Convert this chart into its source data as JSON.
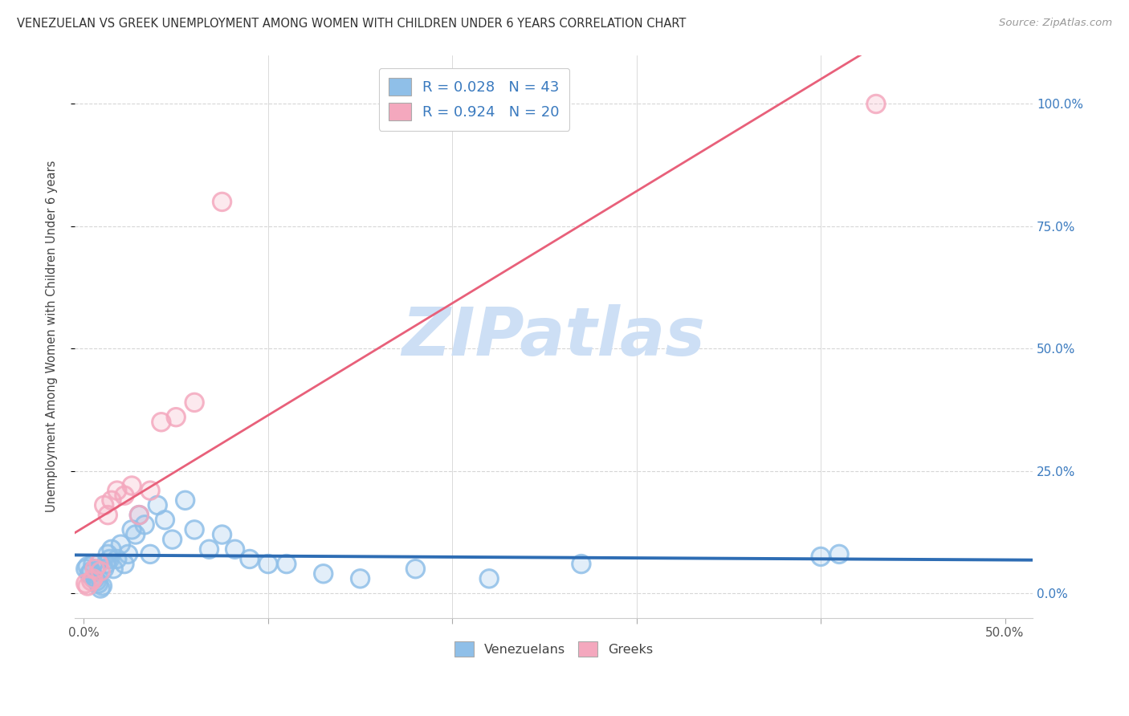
{
  "title": "VENEZUELAN VS GREEK UNEMPLOYMENT AMONG WOMEN WITH CHILDREN UNDER 6 YEARS CORRELATION CHART",
  "source": "Source: ZipAtlas.com",
  "ylabel": "Unemployment Among Women with Children Under 6 years",
  "xlabel_vals": [
    0.0,
    0.1,
    0.2,
    0.3,
    0.4,
    0.5
  ],
  "xlabel_ticks": [
    "0.0%",
    "",
    "",
    "",
    "",
    "50.0%"
  ],
  "ylabel_vals": [
    0.0,
    0.25,
    0.5,
    0.75,
    1.0
  ],
  "ylabel_ticks_right": [
    "0.0%",
    "25.0%",
    "50.0%",
    "75.0%",
    "100.0%"
  ],
  "xlim": [
    -0.005,
    0.515
  ],
  "ylim": [
    -0.05,
    1.1
  ],
  "venezuelan_color": "#8fbfe8",
  "greek_color": "#f4a8be",
  "venezuelan_edge_color": "#6aa3d8",
  "greek_edge_color": "#e8829f",
  "venezuelan_line_color": "#2e6db4",
  "greek_line_color": "#e8607a",
  "legend_color": "#3a7abf",
  "R_venezuelan": 0.028,
  "N_venezuelan": 43,
  "R_greek": 0.924,
  "N_greek": 20,
  "watermark": "ZIPatlas",
  "watermark_color": "#cddff5",
  "venezuelan_x": [
    0.001,
    0.002,
    0.003,
    0.004,
    0.005,
    0.006,
    0.007,
    0.008,
    0.009,
    0.01,
    0.011,
    0.012,
    0.013,
    0.014,
    0.015,
    0.016,
    0.018,
    0.02,
    0.022,
    0.024,
    0.026,
    0.028,
    0.03,
    0.033,
    0.036,
    0.04,
    0.044,
    0.048,
    0.055,
    0.06,
    0.068,
    0.075,
    0.082,
    0.09,
    0.1,
    0.11,
    0.13,
    0.15,
    0.18,
    0.22,
    0.27,
    0.4,
    0.41
  ],
  "venezuelan_y": [
    0.05,
    0.055,
    0.04,
    0.045,
    0.06,
    0.03,
    0.025,
    0.02,
    0.01,
    0.015,
    0.05,
    0.06,
    0.08,
    0.07,
    0.09,
    0.05,
    0.07,
    0.1,
    0.06,
    0.08,
    0.13,
    0.12,
    0.16,
    0.14,
    0.08,
    0.18,
    0.15,
    0.11,
    0.19,
    0.13,
    0.09,
    0.12,
    0.09,
    0.07,
    0.06,
    0.06,
    0.04,
    0.03,
    0.05,
    0.03,
    0.06,
    0.075,
    0.08
  ],
  "greek_x": [
    0.001,
    0.002,
    0.004,
    0.005,
    0.006,
    0.008,
    0.009,
    0.011,
    0.013,
    0.015,
    0.018,
    0.022,
    0.026,
    0.03,
    0.036,
    0.042,
    0.05,
    0.06,
    0.075,
    0.43
  ],
  "greek_y": [
    0.02,
    0.015,
    0.025,
    0.03,
    0.05,
    0.06,
    0.045,
    0.18,
    0.16,
    0.19,
    0.21,
    0.2,
    0.22,
    0.16,
    0.21,
    0.35,
    0.36,
    0.39,
    0.8,
    1.0
  ]
}
